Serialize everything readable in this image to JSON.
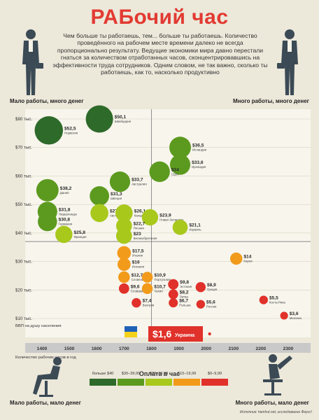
{
  "title": "РАБочий час",
  "intro": "Чем больше ты работаешь, тем... больше ты работаешь. Количество проведённого на рабочем месте времени далеко не всегда пропорционально результату. Ведущие экономики мира давно перестали гнаться за количеством отработанных часов, сконцентрировавшись на эффективности труда сотрудников. Одним словом, не так важно, сколько ты работаешь, как то, насколько продуктивно",
  "quadrants": {
    "top_left": "Мало работы, много денег",
    "top_right": "Много работы, много денег",
    "bottom_left": "Мало работы, мало денег",
    "bottom_right": "Много работы, мало денег"
  },
  "icons": [
    "businessman-icon",
    "businessman-icon",
    "office-worker-chair-icon",
    "tired-worker-icon"
  ],
  "legend": {
    "title": "Оплата в час",
    "items": [
      {
        "label": "больше $40",
        "color": "#2e6a2a"
      },
      {
        "label": "$30–39,99",
        "color": "#5c9a1f"
      },
      {
        "label": "$20–29,99",
        "color": "#a8c81c"
      },
      {
        "label": "$10–19,99",
        "color": "#f29a1a"
      },
      {
        "label": "$0–9,99",
        "color": "#e0312a"
      }
    ]
  },
  "source": "Источник: hamhut.net, исследование Фоусс!",
  "chart_data": {
    "type": "scatter",
    "xlabel": "Количество рабочих часов в год",
    "ylabel": "ВВП на душу населения",
    "xlim": [
      1350,
      2340
    ],
    "ylim": [
      8,
      82
    ],
    "x_ticks": [
      "1400",
      "1500",
      "1600",
      "1700",
      "1800",
      "1900",
      "2000",
      "2100",
      "2200",
      "2300"
    ],
    "x_tick_values": [
      1400,
      1500,
      1600,
      1700,
      1800,
      1900,
      2000,
      2100,
      2200,
      2300
    ],
    "y_ticks": [
      "$10 тыс.",
      "$20 тыс.",
      "$30 тыс.",
      "$40 тыс.",
      "$50 тыс.",
      "$60 тыс.",
      "$70 тыс.",
      "$80 тыс."
    ],
    "y_tick_values": [
      10,
      20,
      30,
      40,
      50,
      60,
      70,
      80
    ],
    "highlight": {
      "label": "$1,6",
      "country": "Украина",
      "x": 2000,
      "y": 11,
      "flag_colors": [
        "#1f62b8",
        "#f5d21a"
      ],
      "box_color": "#e0312a"
    },
    "points": [
      {
        "country": "Швейцария",
        "value": "$50,1",
        "x": 1610,
        "y": 80,
        "color": "#2e6a2a"
      },
      {
        "country": "Норвегия",
        "value": "$52,5",
        "x": 1425,
        "y": 76,
        "color": "#2e6a2a"
      },
      {
        "country": "Исландия",
        "value": "$36,5",
        "x": 1905,
        "y": 70,
        "color": "#5c9a1f"
      },
      {
        "country": "Ирландия",
        "value": "$33,6",
        "x": 1905,
        "y": 64,
        "color": "#5c9a1f"
      },
      {
        "country": "США",
        "value": "$34",
        "x": 1830,
        "y": 61.5,
        "color": "#5c9a1f"
      },
      {
        "country": "Австралия",
        "value": "$33,7",
        "x": 1685,
        "y": 58,
        "color": "#5c9a1f"
      },
      {
        "country": "Дания",
        "value": "$38,2",
        "x": 1420,
        "y": 55,
        "color": "#5c9a1f"
      },
      {
        "country": "Швеция",
        "value": "$31,3",
        "x": 1610,
        "y": 53,
        "color": "#5c9a1f"
      },
      {
        "country": "Нидерланды",
        "value": "$31,8",
        "x": 1420,
        "y": 47.5,
        "color": "#5c9a1f"
      },
      {
        "country": "Австрия",
        "value": "$27,8",
        "x": 1610,
        "y": 47,
        "color": "#a8c81c"
      },
      {
        "country": "Канада",
        "value": "$26,1",
        "x": 1700,
        "y": 47,
        "color": "#a8c81c"
      },
      {
        "country": "Новая Зеландия",
        "value": "$23,9",
        "x": 1795,
        "y": 45.5,
        "color": "#a8c81c"
      },
      {
        "country": "Германия",
        "value": "$30,8",
        "x": 1420,
        "y": 44,
        "color": "#5c9a1f"
      },
      {
        "country": "Япония",
        "value": "$22,7",
        "x": 1700,
        "y": 42.5,
        "color": "#a8c81c"
      },
      {
        "country": "Израиль",
        "value": "$21,1",
        "x": 1905,
        "y": 42,
        "color": "#a8c81c"
      },
      {
        "country": "Франция",
        "value": "$25,8",
        "x": 1480,
        "y": 39.5,
        "color": "#a8c81c"
      },
      {
        "country": "Великобритания",
        "value": "$23",
        "x": 1700,
        "y": 39,
        "color": "#a8c81c"
      },
      {
        "country": "Италия",
        "value": "$17,5",
        "x": 1700,
        "y": 33,
        "color": "#f29a1a"
      },
      {
        "country": "Корея",
        "value": "$14",
        "x": 2110,
        "y": 31,
        "color": "#f29a1a"
      },
      {
        "country": "Испания",
        "value": "$16",
        "x": 1700,
        "y": 29,
        "color": "#f29a1a"
      },
      {
        "country": "Словения",
        "value": "$12,7",
        "x": 1700,
        "y": 24.5,
        "color": "#f29a1a"
      },
      {
        "country": "Португалия",
        "value": "$10,9",
        "x": 1785,
        "y": 24.5,
        "color": "#f29a1a"
      },
      {
        "country": "Эстония",
        "value": "$9,8",
        "x": 1880,
        "y": 22,
        "color": "#e0312a"
      },
      {
        "country": "Греция",
        "value": "$8,9",
        "x": 1980,
        "y": 21,
        "color": "#e0312a"
      },
      {
        "country": "Словакия",
        "value": "$9,6",
        "x": 1700,
        "y": 20.5,
        "color": "#e0312a"
      },
      {
        "country": "Чехия",
        "value": "$10,7",
        "x": 1785,
        "y": 20.5,
        "color": "#f29a1a"
      },
      {
        "country": "Литва",
        "value": "$8,2",
        "x": 1880,
        "y": 18.5,
        "color": "#e0312a"
      },
      {
        "country": "Коста-Рика",
        "value": "$5,5",
        "x": 2210,
        "y": 16.5,
        "color": "#e0312a"
      },
      {
        "country": "Венгрия",
        "value": "$7,4",
        "x": 1745,
        "y": 15.5,
        "color": "#e0312a"
      },
      {
        "country": "Польша",
        "value": "$6,7",
        "x": 1880,
        "y": 15.5,
        "color": "#e0312a"
      },
      {
        "country": "Россия",
        "value": "$5,6",
        "x": 1980,
        "y": 15,
        "color": "#e0312a"
      },
      {
        "country": "Мексика",
        "value": "$3,6",
        "x": 2285,
        "y": 11,
        "color": "#e0312a"
      }
    ]
  }
}
